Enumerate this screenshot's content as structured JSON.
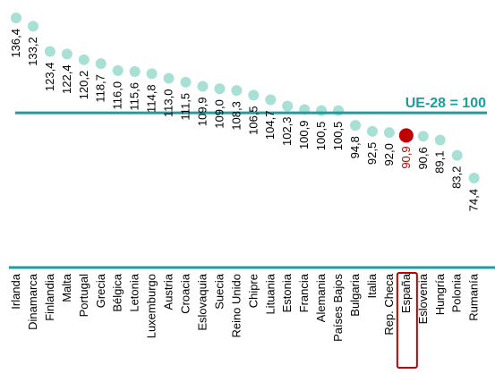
{
  "chart_data": {
    "type": "scatter",
    "categories": [
      "Irlanda",
      "Dinamarca",
      "Finlandia",
      "Malta",
      "Portugal",
      "Grecia",
      "Bélgica",
      "Letonia",
      "Luxemburgo",
      "Austria",
      "Croacia",
      "Eslovaquia",
      "Suecia",
      "Reino Unido",
      "Chipre",
      "Lituania",
      "Estonia",
      "Francia",
      "Alemania",
      "Países Bajos",
      "Bulgaria",
      "Italia",
      "Rep. Checa",
      "España",
      "Eslovenia",
      "Hungría",
      "Polonia",
      "Rumanía"
    ],
    "values": [
      136.4,
      133.2,
      123.4,
      122.4,
      120.2,
      118.7,
      116.0,
      115.6,
      114.8,
      113.0,
      111.5,
      109.9,
      109.0,
      108.3,
      106.5,
      104.7,
      102.3,
      100.9,
      100.5,
      100.5,
      94.8,
      92.5,
      92.0,
      90.9,
      90.6,
      89.1,
      83.2,
      74.4
    ],
    "value_labels": [
      "136,4",
      "133,2",
      "123,4",
      "122,4",
      "120,2",
      "118,7",
      "116,0",
      "115,6",
      "114,8",
      "113,0",
      "111,5",
      "109,9",
      "109,0",
      "108,3",
      "106,5",
      "104,7",
      "102,3",
      "100,9",
      "100,5",
      "100,5",
      "94,8",
      "92,5",
      "92,0",
      "90,9",
      "90,6",
      "89,1",
      "83,2",
      "74,4"
    ],
    "highlight": "España",
    "reference_line": {
      "value": 100,
      "label": "UE-28 = 100"
    },
    "grid": false,
    "colors": {
      "point": "#a8e0d6",
      "highlight": "#c00000",
      "reference": "#1b9e9e",
      "highlight_box": "#c00000",
      "text": "#000000"
    }
  }
}
